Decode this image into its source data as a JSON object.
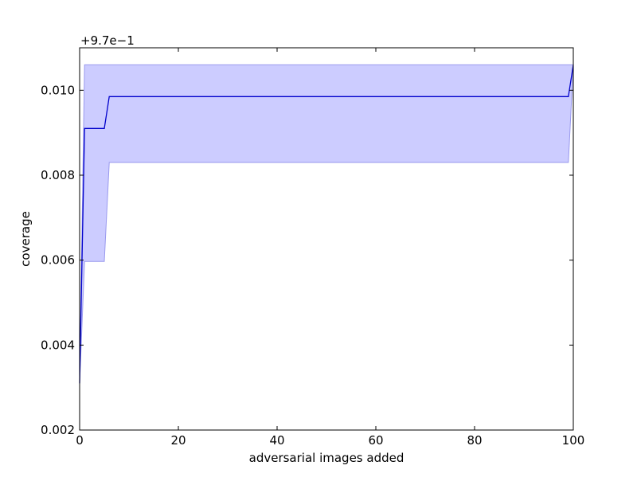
{
  "chart_data": {
    "type": "line",
    "title": "",
    "xlabel": "adversarial images added",
    "ylabel": "coverage",
    "offset_label": "+9.7e−1",
    "y_offset": 0.97,
    "xlim": [
      0,
      100
    ],
    "ylim": [
      0.002,
      0.011
    ],
    "x_ticks": [
      0,
      20,
      40,
      60,
      80,
      100
    ],
    "x_tick_labels": [
      "0",
      "20",
      "40",
      "60",
      "80",
      "100"
    ],
    "y_ticks": [
      0.002,
      0.004,
      0.006,
      0.008,
      0.01
    ],
    "y_tick_labels": [
      "0.002",
      "0.004",
      "0.006",
      "0.008",
      "0.010"
    ],
    "grid": false,
    "series": [
      {
        "type": "line",
        "color": "#0000cc",
        "x": [
          0,
          1,
          5,
          6,
          99,
          100
        ],
        "y": [
          0.0031,
          0.0091,
          0.0091,
          0.00985,
          0.00985,
          0.0106
        ]
      }
    ],
    "band": {
      "color": "#ccccff",
      "edge_color": "#9999ee",
      "x": [
        0,
        1,
        5,
        6,
        99,
        100
      ],
      "lower": [
        0.0031,
        0.00597,
        0.00597,
        0.0083,
        0.0083,
        0.0106
      ],
      "upper": [
        0.0031,
        0.0106,
        0.0106,
        0.0106,
        0.0106,
        0.0106
      ]
    }
  }
}
